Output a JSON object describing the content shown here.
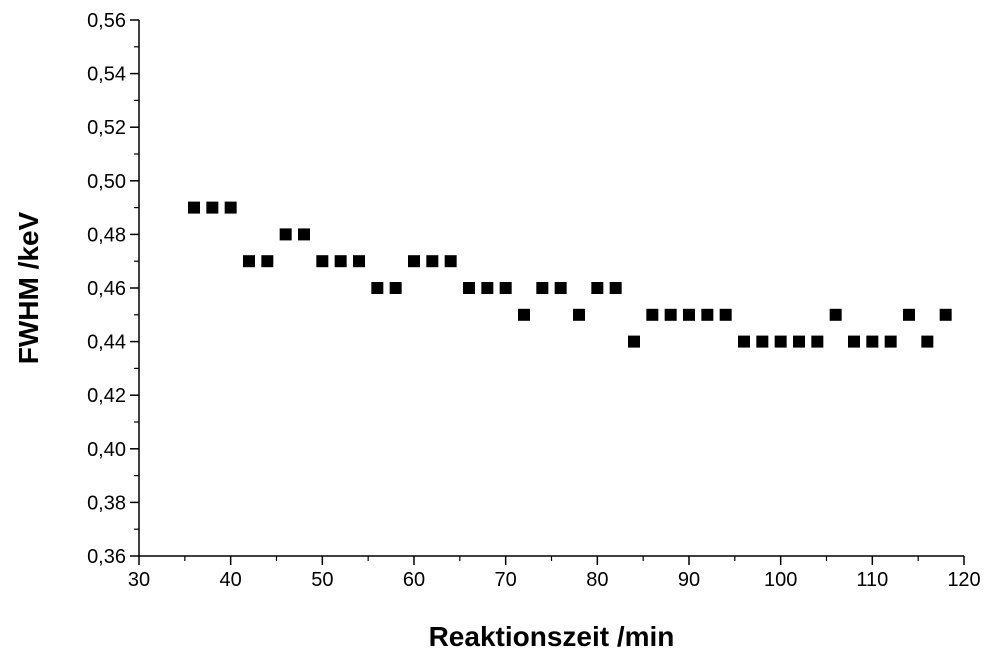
{
  "chart_data": {
    "type": "scatter",
    "title": "",
    "xlabel": "Reaktionszeit /min",
    "ylabel": "FWHM /keV",
    "xlim": [
      30,
      120
    ],
    "ylim": [
      0.36,
      0.56
    ],
    "x_ticks": [
      30,
      40,
      50,
      60,
      70,
      80,
      90,
      100,
      110,
      120
    ],
    "x_tick_labels": [
      "30",
      "40",
      "50",
      "60",
      "70",
      "80",
      "90",
      "100",
      "110",
      "120"
    ],
    "y_ticks": [
      0.36,
      0.38,
      0.4,
      0.42,
      0.44,
      0.46,
      0.48,
      0.5,
      0.52,
      0.54,
      0.56
    ],
    "y_tick_labels": [
      "0,36",
      "0,38",
      "0,40",
      "0,42",
      "0,44",
      "0,46",
      "0,48",
      "0,50",
      "0,52",
      "0,54",
      "0,56"
    ],
    "grid": false,
    "marker": "square",
    "marker_color": "#000000",
    "series": [
      {
        "x": [
          36,
          38,
          40,
          42,
          44,
          46,
          48,
          50,
          52,
          54,
          56,
          58,
          60,
          62,
          64,
          66,
          68,
          70,
          72,
          74,
          76,
          78,
          80,
          82,
          84,
          86,
          88,
          90,
          92,
          94,
          96,
          98,
          100,
          102,
          104,
          106,
          108,
          110,
          112,
          114,
          116,
          118
        ],
        "y": [
          0.49,
          0.49,
          0.49,
          0.47,
          0.47,
          0.48,
          0.48,
          0.47,
          0.47,
          0.47,
          0.46,
          0.46,
          0.47,
          0.47,
          0.47,
          0.46,
          0.46,
          0.46,
          0.45,
          0.46,
          0.46,
          0.45,
          0.46,
          0.46,
          0.44,
          0.45,
          0.45,
          0.45,
          0.45,
          0.45,
          0.44,
          0.44,
          0.44,
          0.44,
          0.44,
          0.45,
          0.44,
          0.44,
          0.44,
          0.45,
          0.44,
          0.45
        ]
      }
    ]
  }
}
